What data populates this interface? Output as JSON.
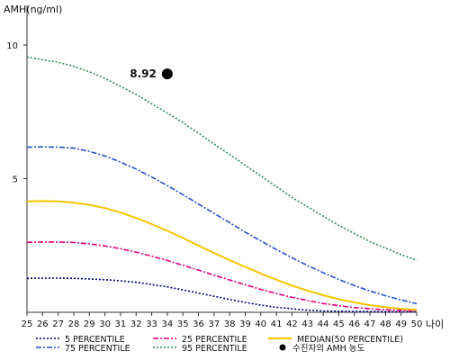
{
  "chart_data": {
    "type": "line",
    "ylabel": "AMH(ng/ml)",
    "xlabel": "나이",
    "x": [
      25,
      26,
      27,
      28,
      29,
      30,
      31,
      32,
      33,
      34,
      35,
      36,
      37,
      38,
      39,
      40,
      41,
      42,
      43,
      44,
      45,
      46,
      47,
      48,
      49,
      50
    ],
    "xlim": [
      25,
      50
    ],
    "ylim": [
      0,
      11
    ],
    "yticks": [
      5,
      10
    ],
    "grid": false,
    "legend_position": "bottom",
    "series": [
      {
        "name": "5 PERCENTILE",
        "color": "#000080",
        "dash": "dotted",
        "values": [
          1.27,
          1.28,
          1.28,
          1.27,
          1.25,
          1.22,
          1.18,
          1.12,
          1.04,
          0.95,
          0.84,
          0.72,
          0.6,
          0.48,
          0.37,
          0.27,
          0.19,
          0.13,
          0.08,
          0.05,
          0.04,
          0.03,
          0.03,
          0.02,
          0.02,
          0.02
        ]
      },
      {
        "name": "25 PERCENTILE",
        "color": "#e0007a",
        "dash": "dashdot",
        "values": [
          2.62,
          2.63,
          2.63,
          2.61,
          2.56,
          2.48,
          2.38,
          2.25,
          2.1,
          1.94,
          1.76,
          1.58,
          1.39,
          1.21,
          1.03,
          0.86,
          0.7,
          0.56,
          0.44,
          0.33,
          0.25,
          0.18,
          0.13,
          0.09,
          0.07,
          0.05
        ]
      },
      {
        "name": "MEDIAN(50 PERCENTILE)",
        "color": "#f5c400",
        "dash": "solid",
        "values": [
          4.15,
          4.16,
          4.15,
          4.1,
          4.02,
          3.9,
          3.73,
          3.53,
          3.3,
          3.05,
          2.78,
          2.5,
          2.22,
          1.95,
          1.7,
          1.45,
          1.22,
          1.0,
          0.81,
          0.64,
          0.49,
          0.37,
          0.27,
          0.19,
          0.13,
          0.09
        ]
      },
      {
        "name": "75 PERCENTILE",
        "color": "#2a4fc8",
        "dash": "dashdot",
        "values": [
          6.18,
          6.19,
          6.18,
          6.14,
          6.02,
          5.85,
          5.62,
          5.36,
          5.06,
          4.74,
          4.4,
          4.05,
          3.7,
          3.35,
          3.0,
          2.67,
          2.35,
          2.04,
          1.75,
          1.48,
          1.23,
          1.0,
          0.8,
          0.62,
          0.46,
          0.32
        ]
      },
      {
        "name": "95 PERCENTILE",
        "color": "#2e8b57",
        "dash": "dotted",
        "values": [
          9.55,
          9.45,
          9.35,
          9.2,
          9.0,
          8.75,
          8.45,
          8.15,
          7.8,
          7.45,
          7.1,
          6.7,
          6.3,
          5.9,
          5.5,
          5.1,
          4.7,
          4.3,
          3.95,
          3.6,
          3.25,
          2.95,
          2.65,
          2.4,
          2.15,
          1.95
        ]
      }
    ],
    "marker": {
      "name": "수진자의 AMH 농도",
      "x": 34,
      "y": 8.92,
      "label": "8.92",
      "color": "#000000"
    },
    "legend_order": [
      "5 PERCENTILE",
      "25 PERCENTILE",
      "MEDIAN(50 PERCENTILE)",
      "75 PERCENTILE",
      "95 PERCENTILE",
      "수진자의 AMH 농도"
    ]
  }
}
